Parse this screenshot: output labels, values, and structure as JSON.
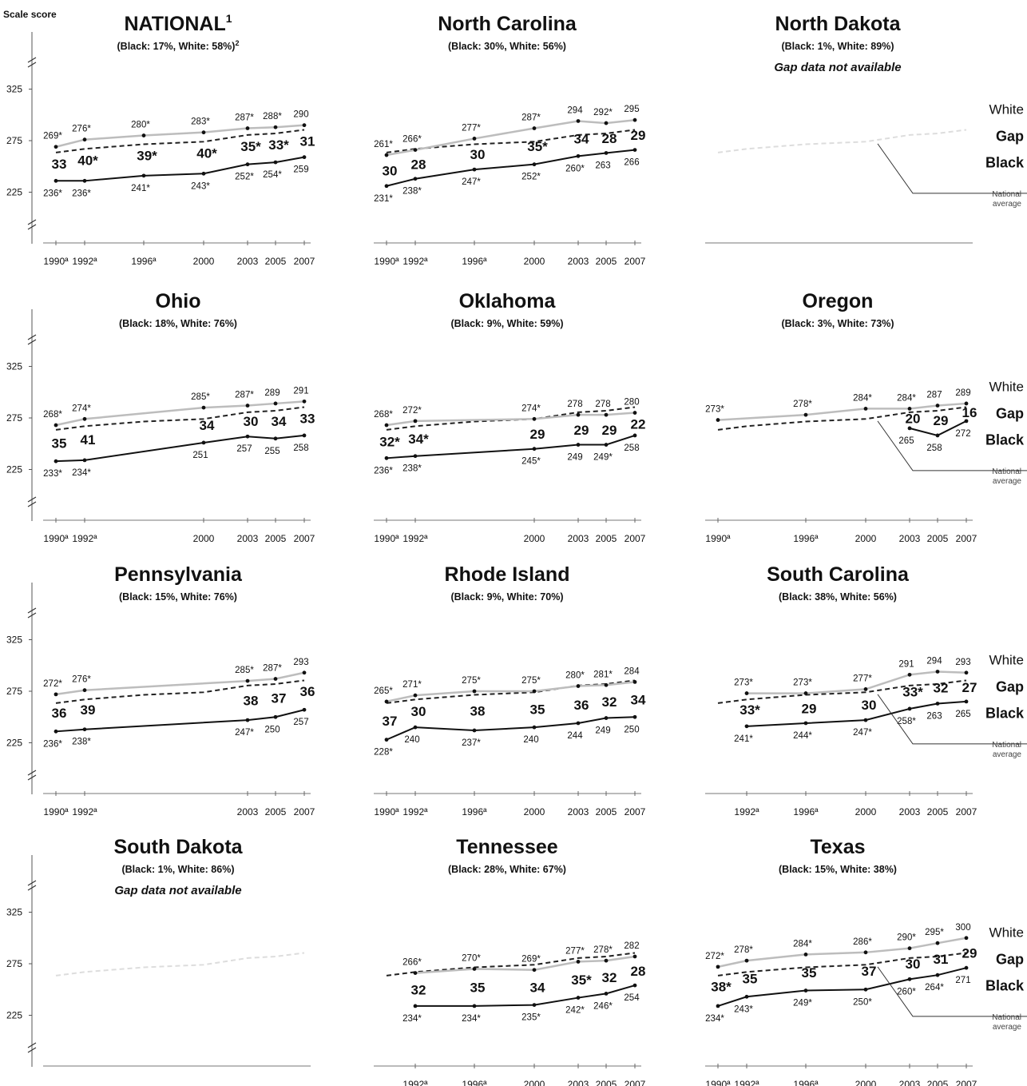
{
  "axis_label": "Scale score",
  "y_ticks": [
    225,
    275,
    325
  ],
  "legend_labels": {
    "white": "White",
    "gap": "Gap",
    "black": "Black",
    "national": "National",
    "average": "average"
  },
  "chart_data": [
    {
      "type": "line",
      "title": "NATIONAL",
      "title_sup": "1",
      "subtitle": "(Black: 17%, White: 58%)",
      "subtitle_sup": "2",
      "ylim": [
        200,
        350
      ],
      "x": [
        "1990ª",
        "1992ª",
        "1996ª",
        "2000",
        "2003",
        "2005",
        "2007"
      ],
      "series": [
        {
          "name": "White",
          "values": [
            269,
            276,
            280,
            283,
            287,
            288,
            290
          ],
          "labels": [
            "269*",
            "276*",
            "280*",
            "283*",
            "287*",
            "288*",
            "290"
          ]
        },
        {
          "name": "Black",
          "values": [
            236,
            236,
            241,
            243,
            252,
            254,
            259
          ],
          "labels": [
            "236*",
            "236*",
            "241*",
            "243*",
            "252*",
            "254*",
            "259"
          ]
        }
      ],
      "gap": [
        "33",
        "40*",
        "39*",
        "40*",
        "35*",
        "33*",
        "31"
      ]
    },
    {
      "type": "line",
      "title": "North Carolina",
      "subtitle": "(Black: 30%, White: 56%)",
      "ylim": [
        200,
        350
      ],
      "x": [
        "1990ª",
        "1992ª",
        "1996ª",
        "2000",
        "2003",
        "2005",
        "2007"
      ],
      "series": [
        {
          "name": "White",
          "values": [
            261,
            266,
            277,
            287,
            294,
            292,
            295
          ],
          "labels": [
            "261*",
            "266*",
            "277*",
            "287*",
            "294",
            "292*",
            "295"
          ]
        },
        {
          "name": "Black",
          "values": [
            231,
            238,
            247,
            252,
            260,
            263,
            266
          ],
          "labels": [
            "231*",
            "238*",
            "247*",
            "252*",
            "260*",
            "263",
            "266"
          ]
        }
      ],
      "gap": [
        "30",
        "28",
        "30",
        "35*",
        "34",
        "28",
        "29"
      ]
    },
    {
      "type": "line",
      "title": "North Dakota",
      "subtitle": "(Black: 1%, White: 89%)",
      "note": "Gap data not available",
      "ylim": [
        200,
        350
      ],
      "x": [],
      "series": [],
      "gap": [],
      "legend": true
    },
    {
      "type": "line",
      "title": "Ohio",
      "subtitle": "(Black: 18%, White: 76%)",
      "ylim": [
        200,
        350
      ],
      "x": [
        "1990ª",
        "1992ª",
        "2000",
        "2003",
        "2005",
        "2007"
      ],
      "series": [
        {
          "name": "White",
          "values": [
            268,
            274,
            285,
            287,
            289,
            291
          ],
          "labels": [
            "268*",
            "274*",
            "285*",
            "287*",
            "289",
            "291"
          ]
        },
        {
          "name": "Black",
          "values": [
            233,
            234,
            251,
            257,
            255,
            258
          ],
          "labels": [
            "233*",
            "234*",
            "251",
            "257",
            "255",
            "258"
          ]
        }
      ],
      "gap": [
        "35",
        "41",
        "34",
        "30",
        "34",
        "33"
      ]
    },
    {
      "type": "line",
      "title": "Oklahoma",
      "subtitle": "(Black: 9%, White: 59%)",
      "ylim": [
        200,
        350
      ],
      "x": [
        "1990ª",
        "1992ª",
        "2000",
        "2003",
        "2005",
        "2007"
      ],
      "series": [
        {
          "name": "White",
          "values": [
            268,
            272,
            274,
            278,
            278,
            280
          ],
          "labels": [
            "268*",
            "272*",
            "274*",
            "278",
            "278",
            "280"
          ]
        },
        {
          "name": "Black",
          "values": [
            236,
            238,
            245,
            249,
            249,
            258
          ],
          "labels": [
            "236*",
            "238*",
            "245*",
            "249",
            "249*",
            "258"
          ]
        }
      ],
      "gap": [
        "32*",
        "34*",
        "29",
        "29",
        "29",
        "22"
      ]
    },
    {
      "type": "line",
      "title": "Oregon",
      "subtitle": "(Black: 3%, White: 73%)",
      "ylim": [
        200,
        350
      ],
      "x": [
        "1990ª",
        "1996ª",
        "2000",
        "2003",
        "2005",
        "2007"
      ],
      "series": [
        {
          "name": "White",
          "values": [
            273,
            278,
            284,
            284,
            287,
            289
          ],
          "labels": [
            "273*",
            "278*",
            "284*",
            "284*",
            "287",
            "289"
          ]
        },
        {
          "name": "Black",
          "values": [
            null,
            null,
            null,
            265,
            258,
            272
          ],
          "labels": [
            "",
            "",
            "",
            "265",
            "258",
            "272"
          ]
        }
      ],
      "gap": [
        "",
        "",
        "",
        "20",
        "29",
        "16"
      ],
      "legend": true
    },
    {
      "type": "line",
      "title": "Pennsylvania",
      "subtitle": "(Black: 15%, White: 76%)",
      "ylim": [
        200,
        350
      ],
      "x": [
        "1990ª",
        "1992ª",
        "2003",
        "2005",
        "2007"
      ],
      "series": [
        {
          "name": "White",
          "values": [
            272,
            276,
            285,
            287,
            293
          ],
          "labels": [
            "272*",
            "276*",
            "285*",
            "287*",
            "293"
          ]
        },
        {
          "name": "Black",
          "values": [
            236,
            238,
            247,
            250,
            257
          ],
          "labels": [
            "236*",
            "238*",
            "247*",
            "250",
            "257"
          ]
        }
      ],
      "gap": [
        "36",
        "39",
        "38",
        "37",
        "36"
      ]
    },
    {
      "type": "line",
      "title": "Rhode Island",
      "subtitle": "(Black: 9%, White: 70%)",
      "ylim": [
        200,
        350
      ],
      "x": [
        "1990ª",
        "1992ª",
        "1996ª",
        "2000",
        "2003",
        "2005",
        "2007"
      ],
      "series": [
        {
          "name": "White",
          "values": [
            265,
            271,
            275,
            275,
            280,
            281,
            284
          ],
          "labels": [
            "265*",
            "271*",
            "275*",
            "275*",
            "280*",
            "281*",
            "284"
          ]
        },
        {
          "name": "Black",
          "values": [
            228,
            240,
            237,
            240,
            244,
            249,
            250
          ],
          "labels": [
            "228*",
            "240",
            "237*",
            "240",
            "244",
            "249",
            "250"
          ]
        }
      ],
      "gap": [
        "37",
        "30",
        "38",
        "35",
        "36",
        "32",
        "34"
      ]
    },
    {
      "type": "line",
      "title": "South Carolina",
      "subtitle": "(Black: 38%, White: 56%)",
      "ylim": [
        200,
        350
      ],
      "x": [
        "1992ª",
        "1996ª",
        "2000",
        "2003",
        "2005",
        "2007"
      ],
      "series": [
        {
          "name": "White",
          "values": [
            273,
            273,
            277,
            291,
            294,
            293
          ],
          "labels": [
            "273*",
            "273*",
            "277*",
            "291",
            "294",
            "293"
          ]
        },
        {
          "name": "Black",
          "values": [
            241,
            244,
            247,
            258,
            263,
            265
          ],
          "labels": [
            "241*",
            "244*",
            "247*",
            "258*",
            "263",
            "265"
          ]
        }
      ],
      "gap": [
        "33*",
        "29",
        "30",
        "33*",
        "32",
        "27"
      ],
      "legend": true
    },
    {
      "type": "line",
      "title": "South Dakota",
      "subtitle": "(Black: 1%, White: 86%)",
      "note": "Gap data not available",
      "ylim": [
        200,
        350
      ],
      "x": [],
      "series": [],
      "gap": []
    },
    {
      "type": "line",
      "title": "Tennessee",
      "subtitle": "(Black: 28%, White: 67%)",
      "ylim": [
        200,
        350
      ],
      "x": [
        "1992ª",
        "1996ª",
        "2000",
        "2003",
        "2005",
        "2007"
      ],
      "series": [
        {
          "name": "White",
          "values": [
            266,
            270,
            269,
            277,
            278,
            282
          ],
          "labels": [
            "266*",
            "270*",
            "269*",
            "277*",
            "278*",
            "282"
          ]
        },
        {
          "name": "Black",
          "values": [
            234,
            234,
            235,
            242,
            246,
            254
          ],
          "labels": [
            "234*",
            "234*",
            "235*",
            "242*",
            "246*",
            "254"
          ]
        }
      ],
      "gap": [
        "32",
        "35",
        "34",
        "35*",
        "32",
        "28"
      ]
    },
    {
      "type": "line",
      "title": "Texas",
      "subtitle": "(Black: 15%, White: 38%)",
      "ylim": [
        200,
        350
      ],
      "x": [
        "1990ª",
        "1992ª",
        "1996ª",
        "2000",
        "2003",
        "2005",
        "2007"
      ],
      "series": [
        {
          "name": "White",
          "values": [
            272,
            278,
            284,
            286,
            290,
            295,
            300
          ],
          "labels": [
            "272*",
            "278*",
            "284*",
            "286*",
            "290*",
            "295*",
            "300"
          ]
        },
        {
          "name": "Black",
          "values": [
            234,
            243,
            249,
            250,
            260,
            264,
            271
          ],
          "labels": [
            "234*",
            "243*",
            "249*",
            "250*",
            "260*",
            "264*",
            "271"
          ]
        }
      ],
      "gap": [
        "38*",
        "35",
        "35",
        "37",
        "30",
        "31",
        "29"
      ],
      "legend": true
    }
  ]
}
